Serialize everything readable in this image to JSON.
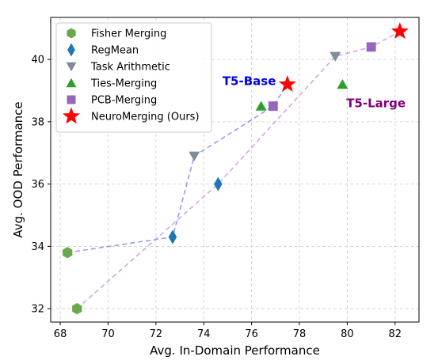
{
  "chart_data": {
    "type": "scatter",
    "xlabel": "Avg. In-Domain Performance",
    "ylabel": "Avg. OOD Performance",
    "xlim": [
      67.6,
      83.0
    ],
    "ylim": [
      31.57,
      41.35
    ],
    "xticks": [
      68,
      70,
      72,
      74,
      76,
      78,
      80,
      82
    ],
    "yticks": [
      32,
      34,
      36,
      38,
      40
    ],
    "grid": true,
    "legend_position": "top-left",
    "series": [
      {
        "name": "Fisher Merging",
        "marker": "hexagon",
        "color": "#6aa84f",
        "points": [
          {
            "x": 68.3,
            "y": 33.8
          },
          {
            "x": 68.7,
            "y": 32.0
          }
        ]
      },
      {
        "name": "RegMean",
        "marker": "diamond",
        "color": "#1f77b4",
        "points": [
          {
            "x": 72.7,
            "y": 34.3
          },
          {
            "x": 74.6,
            "y": 36.0
          }
        ]
      },
      {
        "name": "Task Arithmetic",
        "marker": "triangle-down",
        "color": "#7f8c9a",
        "points": [
          {
            "x": 73.6,
            "y": 36.9
          },
          {
            "x": 79.5,
            "y": 40.1
          }
        ]
      },
      {
        "name": "Ties-Merging",
        "marker": "triangle-up",
        "color": "#2ca02c",
        "points": [
          {
            "x": 76.4,
            "y": 38.5
          },
          {
            "x": 79.8,
            "y": 39.2
          }
        ]
      },
      {
        "name": "PCB-Merging",
        "marker": "square",
        "color": "#9467bd",
        "points": [
          {
            "x": 76.9,
            "y": 38.5
          },
          {
            "x": 81.0,
            "y": 40.4
          }
        ]
      },
      {
        "name": "NeuroMerging (Ours)",
        "marker": "star",
        "color": "#ff0000",
        "points": [
          {
            "x": 77.5,
            "y": 39.2
          },
          {
            "x": 82.2,
            "y": 40.9
          }
        ]
      }
    ],
    "trend_lines": [
      {
        "group": "T5-Base",
        "color": "#8888ee",
        "points": [
          {
            "x": 68.3,
            "y": 33.8
          },
          {
            "x": 72.7,
            "y": 34.3
          },
          {
            "x": 73.6,
            "y": 36.9
          },
          {
            "x": 76.9,
            "y": 38.5
          },
          {
            "x": 77.5,
            "y": 39.2
          }
        ]
      },
      {
        "group": "T5-Large",
        "color": "#cc99dd",
        "points": [
          {
            "x": 68.7,
            "y": 32.0
          },
          {
            "x": 74.6,
            "y": 36.0
          },
          {
            "x": 79.5,
            "y": 40.1
          },
          {
            "x": 81.0,
            "y": 40.4
          },
          {
            "x": 82.2,
            "y": 40.9
          }
        ]
      }
    ],
    "annotations": [
      {
        "text": "T5-Base",
        "color": "#0000ee",
        "x": 75.9,
        "y": 39.3
      },
      {
        "text": "T5-Large",
        "color": "#800080",
        "x": 81.2,
        "y": 38.6
      }
    ]
  }
}
